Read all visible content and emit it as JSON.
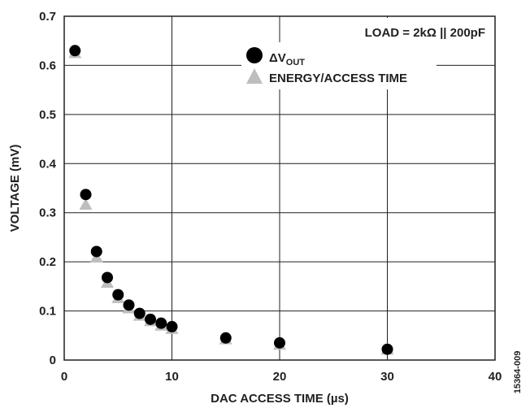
{
  "chart_data": {
    "type": "scatter",
    "xlabel": "DAC ACCESS TIME (µs)",
    "ylabel": "VOLTAGE (mV)",
    "xlim": [
      0,
      40
    ],
    "ylim": [
      0,
      0.7
    ],
    "x_ticks": [
      "0",
      "10",
      "20",
      "30",
      "40"
    ],
    "y_ticks": [
      "0",
      "0.1",
      "0.2",
      "0.3",
      "0.4",
      "0.5",
      "0.6",
      "0.7"
    ],
    "grid": true,
    "legend_position": "top-right",
    "annotation": "LOAD = 2kΩ || 200pF",
    "figure_id": "15364-009",
    "series": [
      {
        "name": "ΔV",
        "name_subscript": "OUT",
        "marker": "circle",
        "color": "#000000",
        "points": [
          [
            1,
            0.63
          ],
          [
            2,
            0.337
          ],
          [
            3,
            0.221
          ],
          [
            4,
            0.168
          ],
          [
            5,
            0.133
          ],
          [
            6,
            0.112
          ],
          [
            7,
            0.095
          ],
          [
            8,
            0.083
          ],
          [
            9,
            0.075
          ],
          [
            10,
            0.068
          ],
          [
            15,
            0.045
          ],
          [
            20,
            0.035
          ],
          [
            30,
            0.022
          ]
        ]
      },
      {
        "name": "ENERGY/ACCESS TIME",
        "marker": "triangle",
        "color": "#bcbec0",
        "points": [
          [
            1,
            0.625
          ],
          [
            2,
            0.316
          ],
          [
            3,
            0.209
          ],
          [
            4,
            0.157
          ],
          [
            5,
            0.126
          ],
          [
            6,
            0.105
          ],
          [
            7,
            0.09
          ],
          [
            8,
            0.079
          ],
          [
            9,
            0.07
          ],
          [
            10,
            0.063
          ],
          [
            15,
            0.042
          ],
          [
            20,
            0.031
          ],
          [
            30,
            0.021
          ]
        ]
      }
    ]
  }
}
